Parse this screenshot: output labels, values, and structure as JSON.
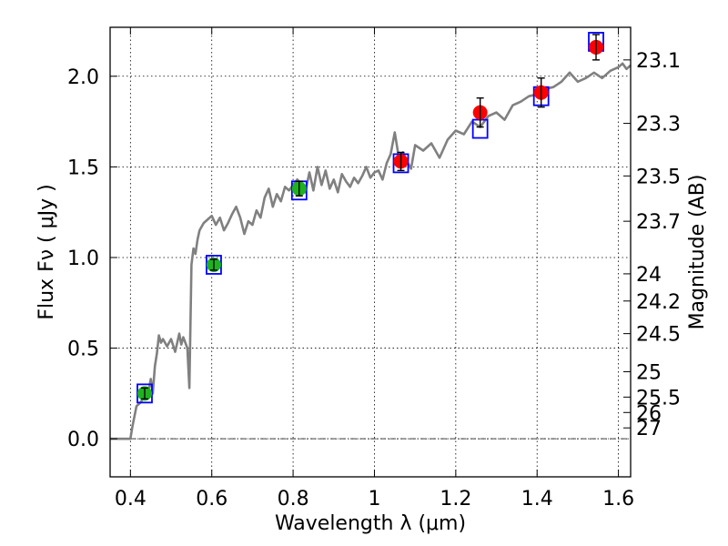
{
  "chart_data": {
    "type": "scatter",
    "xlabel": "Wavelength  λ (μm)",
    "ylabel": "Flux  Fν  ( μJy )",
    "ylabel_right": "Magnitude (AB)",
    "xlim": [
      0.35,
      1.63
    ],
    "ylim": [
      -0.21,
      2.27
    ],
    "grid": true,
    "x_ticks": [
      0.4,
      0.6,
      0.8,
      1.0,
      1.2,
      1.4,
      1.6
    ],
    "x_tick_labels": [
      "0.4",
      "0.6",
      "0.8",
      "1",
      "1.2",
      "1.4",
      "1.6"
    ],
    "y_ticks": [
      0.0,
      0.5,
      1.0,
      1.5,
      2.0
    ],
    "y_tick_labels": [
      "0.0",
      "0.5",
      "1.0",
      "1.5",
      "2.0"
    ],
    "right_ticks": [
      {
        "flux": 2.09,
        "label": "23.1"
      },
      {
        "flux": 1.74,
        "label": "23.3"
      },
      {
        "flux": 1.45,
        "label": "23.5"
      },
      {
        "flux": 1.2,
        "label": "23.7"
      },
      {
        "flux": 0.91,
        "label": "24"
      },
      {
        "flux": 0.76,
        "label": "24.2"
      },
      {
        "flux": 0.58,
        "label": "24.5"
      },
      {
        "flux": 0.37,
        "label": "25"
      },
      {
        "flux": 0.23,
        "label": "25.5"
      },
      {
        "flux": 0.145,
        "label": "26"
      },
      {
        "flux": 0.06,
        "label": "27"
      }
    ],
    "colors": {
      "spectrum": "#808080",
      "observed_optical": "#1fb21f",
      "observed_nir": "#ff0000",
      "model_box": "#0000ff",
      "zero_line": "#444444"
    },
    "series": [
      {
        "role": "model-spectrum",
        "x": [
          0.35,
          0.4,
          0.405,
          0.415,
          0.425,
          0.435,
          0.445,
          0.45,
          0.455,
          0.46,
          0.465,
          0.47,
          0.475,
          0.48,
          0.49,
          0.5,
          0.51,
          0.52,
          0.525,
          0.53,
          0.535,
          0.54,
          0.545,
          0.55,
          0.555,
          0.56,
          0.565,
          0.57,
          0.58,
          0.59,
          0.6,
          0.61,
          0.62,
          0.63,
          0.64,
          0.65,
          0.66,
          0.67,
          0.68,
          0.69,
          0.7,
          0.71,
          0.72,
          0.73,
          0.74,
          0.75,
          0.76,
          0.77,
          0.78,
          0.79,
          0.8,
          0.81,
          0.82,
          0.83,
          0.84,
          0.85,
          0.86,
          0.87,
          0.88,
          0.89,
          0.9,
          0.91,
          0.92,
          0.93,
          0.94,
          0.95,
          0.96,
          0.97,
          0.98,
          0.99,
          1.0,
          1.01,
          1.02,
          1.03,
          1.04,
          1.05,
          1.06,
          1.07,
          1.08,
          1.09,
          1.1,
          1.12,
          1.14,
          1.16,
          1.18,
          1.2,
          1.22,
          1.24,
          1.26,
          1.28,
          1.3,
          1.32,
          1.34,
          1.36,
          1.38,
          1.4,
          1.42,
          1.44,
          1.46,
          1.48,
          1.5,
          1.52,
          1.54,
          1.56,
          1.58,
          1.6,
          1.61,
          1.62,
          1.63
        ],
        "y": [
          0.0,
          0.0,
          0.07,
          0.18,
          0.2,
          0.24,
          0.27,
          0.33,
          0.25,
          0.4,
          0.47,
          0.57,
          0.53,
          0.55,
          0.51,
          0.55,
          0.48,
          0.58,
          0.52,
          0.56,
          0.53,
          0.5,
          0.28,
          0.96,
          1.05,
          1.02,
          1.1,
          1.15,
          1.19,
          1.21,
          1.23,
          1.18,
          1.22,
          1.15,
          1.19,
          1.24,
          1.28,
          1.22,
          1.13,
          1.2,
          1.18,
          1.26,
          1.22,
          1.33,
          1.38,
          1.28,
          1.35,
          1.31,
          1.39,
          1.37,
          1.4,
          1.43,
          1.41,
          1.36,
          1.47,
          1.37,
          1.5,
          1.4,
          1.48,
          1.38,
          1.43,
          1.36,
          1.46,
          1.42,
          1.39,
          1.44,
          1.41,
          1.45,
          1.5,
          1.44,
          1.47,
          1.48,
          1.43,
          1.52,
          1.57,
          1.69,
          1.55,
          1.58,
          1.53,
          1.49,
          1.62,
          1.59,
          1.63,
          1.55,
          1.65,
          1.7,
          1.68,
          1.75,
          1.72,
          1.78,
          1.8,
          1.76,
          1.84,
          1.86,
          1.89,
          1.9,
          1.93,
          1.94,
          1.97,
          2.02,
          1.97,
          1.99,
          2.02,
          1.99,
          2.03,
          2.05,
          2.07,
          2.04,
          2.06
        ]
      },
      {
        "role": "model-photometry",
        "x": [
          0.435,
          0.605,
          0.815,
          1.065,
          1.26,
          1.41,
          1.545
        ],
        "y": [
          0.25,
          0.96,
          1.37,
          1.52,
          1.71,
          1.89,
          2.19
        ]
      },
      {
        "role": "observed-optical",
        "x": [
          0.435,
          0.605,
          0.815
        ],
        "y": [
          0.25,
          0.96,
          1.38
        ],
        "err": [
          0.03,
          0.03,
          0.04
        ]
      },
      {
        "role": "observed-nir",
        "x": [
          1.065,
          1.26,
          1.41,
          1.545
        ],
        "y": [
          1.53,
          1.8,
          1.91,
          2.16
        ],
        "err": [
          0.05,
          0.08,
          0.08,
          0.07
        ]
      }
    ]
  }
}
